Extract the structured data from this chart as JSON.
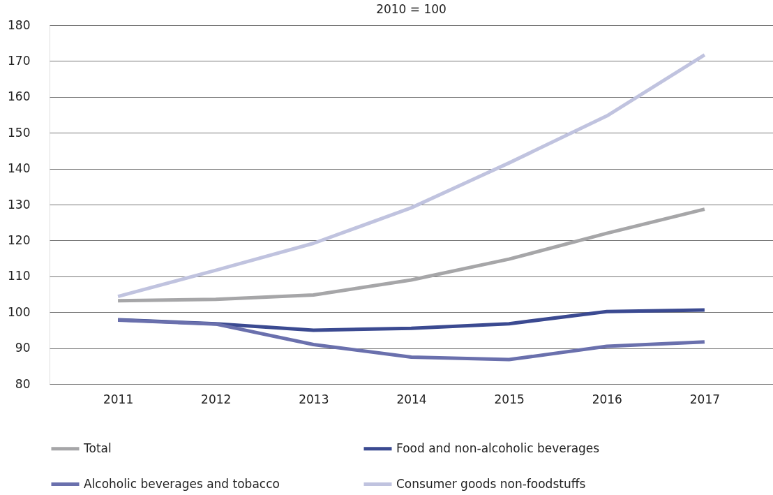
{
  "chart_data": {
    "type": "line",
    "title": "2010 = 100",
    "categories": [
      "2011",
      "2012",
      "2013",
      "2014",
      "2015",
      "2016",
      "2017"
    ],
    "series": [
      {
        "name": "Total",
        "color": "#a6a6a8",
        "values": [
          103.2,
          103.6,
          104.8,
          109,
          114.8,
          122,
          128.7
        ]
      },
      {
        "name": "Food and non-alcoholic beverages",
        "color": "#3b4a91",
        "values": [
          97.9,
          96.8,
          95,
          95.5,
          96.8,
          100.2,
          100.6
        ]
      },
      {
        "name": "Alcoholic beverages and tobacco",
        "color": "#6a70ad",
        "values": [
          97.8,
          96.7,
          91,
          87.5,
          86.8,
          90.5,
          91.7
        ]
      },
      {
        "name": "Consumer goods non-foodstuffs",
        "color": "#c0c3df",
        "values": [
          104.4,
          111.7,
          119.2,
          129.1,
          141.6,
          154.7,
          171.7
        ]
      }
    ],
    "ylim": [
      80,
      180
    ],
    "yticks": [
      80,
      90,
      100,
      110,
      120,
      130,
      140,
      150,
      160,
      170,
      180
    ],
    "grid": "y",
    "legend": "bottom",
    "marker": "none",
    "line_style": "solid"
  }
}
